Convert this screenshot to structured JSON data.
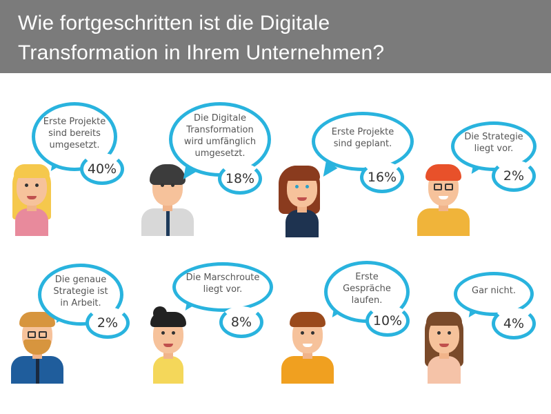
{
  "title_line1": "Wie fortgeschritten ist die Digitale",
  "title_line2": "Transformation in Ihrem Unternehmen?",
  "accent": "#29b3de",
  "items": [
    {
      "text": "Erste Projekte sind bereits umgesetzt.",
      "pct": "40%"
    },
    {
      "text": "Die Digitale Transformation wird umfänglich umgesetzt.",
      "pct": "18%"
    },
    {
      "text": "Erste Projekte sind geplant.",
      "pct": "16%"
    },
    {
      "text": "Die Strategie liegt vor.",
      "pct": "2%"
    },
    {
      "text": "Die genaue Strategie ist in Arbeit.",
      "pct": "2%"
    },
    {
      "text": "Die Marschroute liegt vor.",
      "pct": "8%"
    },
    {
      "text": "Erste Gespräche laufen.",
      "pct": "10%"
    },
    {
      "text": "Gar nicht.",
      "pct": "4%"
    }
  ]
}
